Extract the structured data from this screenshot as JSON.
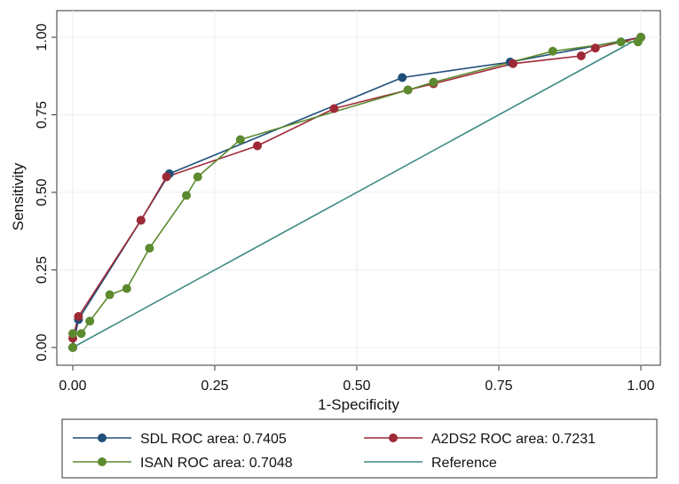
{
  "chart_data": {
    "type": "line",
    "title": "",
    "xlabel": "1-Specificity",
    "ylabel": "Sensitivity",
    "xlim": [
      0,
      1
    ],
    "ylim": [
      0,
      1
    ],
    "xticks": [
      "0.00",
      "0.25",
      "0.50",
      "0.75",
      "1.00"
    ],
    "yticks": [
      "0.00",
      "0.25",
      "0.50",
      "0.75",
      "1.00"
    ],
    "grid": true,
    "legend_position": "bottom",
    "series": [
      {
        "name": "SDL ROC area: 0.7405",
        "color": "#1f4e79",
        "markers": true,
        "x": [
          0.0,
          0.01,
          0.12,
          0.17,
          0.58,
          0.77,
          1.0
        ],
        "y": [
          0.0,
          0.09,
          0.41,
          0.56,
          0.87,
          0.92,
          1.0
        ]
      },
      {
        "name": "A2DS2 ROC area: 0.7231",
        "color": "#9e2a37",
        "markers": true,
        "x": [
          0.0,
          0.0,
          0.01,
          0.12,
          0.165,
          0.325,
          0.46,
          0.59,
          0.635,
          0.775,
          0.895,
          0.92,
          1.0
        ],
        "y": [
          0.0,
          0.03,
          0.1,
          0.41,
          0.55,
          0.65,
          0.77,
          0.83,
          0.85,
          0.915,
          0.94,
          0.965,
          1.0
        ]
      },
      {
        "name": "ISAN ROC area: 0.7048",
        "color": "#5c8a2f",
        "markers": true,
        "x": [
          0.0,
          0.0,
          0.015,
          0.03,
          0.065,
          0.095,
          0.135,
          0.2,
          0.22,
          0.295,
          0.59,
          0.635,
          0.845,
          0.965,
          0.995,
          1.0
        ],
        "y": [
          0.0,
          0.045,
          0.045,
          0.085,
          0.17,
          0.19,
          0.32,
          0.49,
          0.55,
          0.67,
          0.83,
          0.855,
          0.955,
          0.985,
          0.985,
          1.0
        ]
      },
      {
        "name": "Reference",
        "color": "#3d8a82",
        "markers": false,
        "x": [
          0,
          1
        ],
        "y": [
          0,
          1
        ]
      }
    ]
  }
}
